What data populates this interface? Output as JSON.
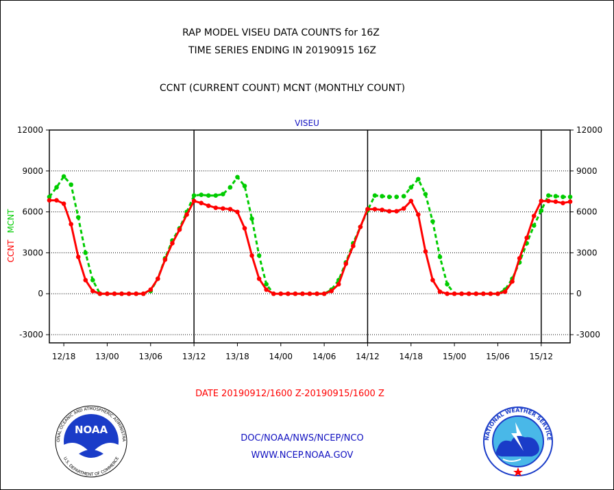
{
  "header": {
    "line1": "RAP MODEL VISEU DATA COUNTS for 16Z",
    "line2": "TIME SERIES ENDING IN 20190915 16Z",
    "line3": "CCNT (CURRENT COUNT) MCNT (MONTHLY COUNT)"
  },
  "footer": {
    "date_range": "DATE 20190912/1600 Z-20190915/1600 Z",
    "org": "DOC/NOAA/NWS/NCEP/NCO",
    "url": "WWW.NCEP.NOAA.GOV"
  },
  "logos": {
    "left": "noaa-logo",
    "right": "nws-logo"
  },
  "chart_data": {
    "type": "line",
    "title": "VISEU",
    "ylabel_ccnt": "CCNT",
    "ylabel_mcnt": "MCNT",
    "ylim": [
      -3600,
      12000
    ],
    "y_ticks": [
      12000,
      9000,
      6000,
      3000,
      0,
      -3000
    ],
    "x_ticks": [
      "12/18",
      "13/00",
      "13/06",
      "13/12",
      "13/18",
      "14/00",
      "14/06",
      "14/12",
      "14/18",
      "15/00",
      "15/06",
      "15/12"
    ],
    "x_tick_hours": [
      2,
      8,
      14,
      20,
      26,
      32,
      38,
      44,
      50,
      56,
      62,
      68
    ],
    "xlim_hours": [
      0,
      72
    ],
    "day_boundaries_hours": [
      20,
      44,
      68
    ],
    "grid": "horizontal-dotted",
    "x_unit": "hours since 2019-09-12 16Z",
    "series": [
      {
        "name": "CCNT",
        "color": "#ff0000",
        "style": "solid",
        "values": [
          6850,
          6850,
          6600,
          5100,
          2700,
          1000,
          200,
          0,
          0,
          0,
          0,
          0,
          0,
          0,
          300,
          1100,
          2500,
          3700,
          4700,
          5800,
          6800,
          6650,
          6450,
          6300,
          6250,
          6200,
          6000,
          4800,
          2800,
          1100,
          300,
          0,
          0,
          0,
          0,
          0,
          0,
          0,
          0,
          200,
          700,
          2200,
          3500,
          4900,
          6200,
          6200,
          6150,
          6050,
          6050,
          6250,
          6800,
          5800,
          3100,
          1000,
          150,
          0,
          0,
          0,
          0,
          0,
          0,
          0,
          0,
          150,
          900,
          2600,
          4100,
          5700,
          6800,
          6800,
          6750,
          6650,
          6750
        ]
      },
      {
        "name": "MCNT",
        "color": "#00cc00",
        "style": "dashed",
        "values": [
          7100,
          7800,
          8600,
          8000,
          5600,
          3000,
          1000,
          0,
          0,
          0,
          0,
          0,
          0,
          0,
          200,
          1100,
          2600,
          3900,
          4800,
          6000,
          7200,
          7250,
          7200,
          7200,
          7300,
          7800,
          8550,
          7900,
          5500,
          2800,
          700,
          0,
          0,
          0,
          0,
          0,
          0,
          0,
          0,
          300,
          1000,
          2300,
          3700,
          4900,
          6100,
          7200,
          7150,
          7100,
          7100,
          7150,
          7800,
          8400,
          7300,
          5300,
          2700,
          700,
          0,
          0,
          0,
          0,
          0,
          0,
          0,
          300,
          1100,
          2300,
          3700,
          5000,
          6100,
          7200,
          7150,
          7100,
          7100
        ]
      }
    ]
  }
}
